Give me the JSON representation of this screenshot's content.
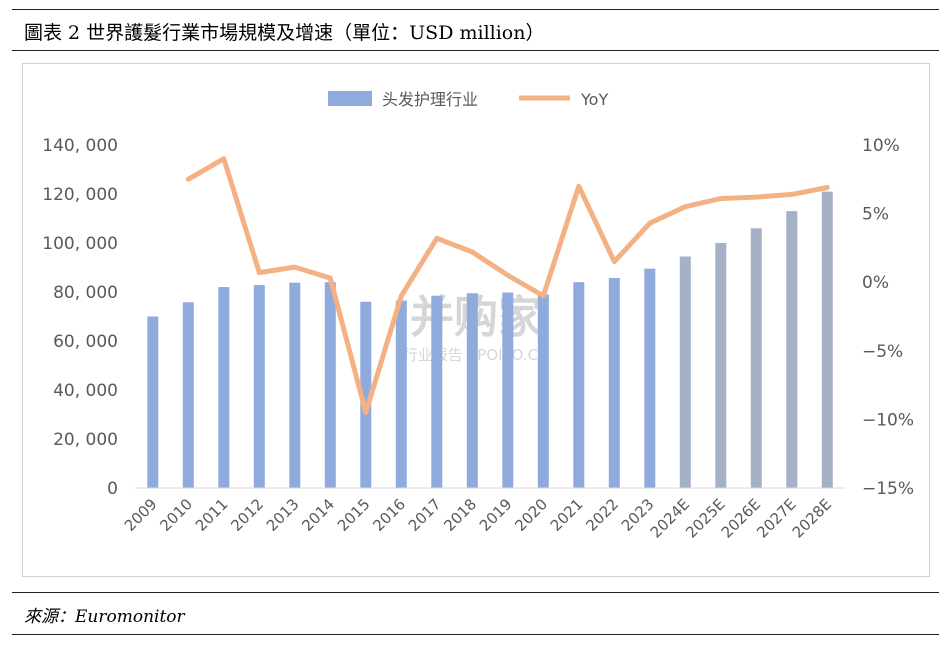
{
  "figure": {
    "title": "圖表 2  世界護髮行業市場規模及增速（單位：USD million）",
    "source": "來源：Euromonitor"
  },
  "watermark": {
    "main": "并购家",
    "sub": "行业报告 | POIPO.CN"
  },
  "chart_data": {
    "type": "bar+line",
    "categories": [
      "2009",
      "2010",
      "2011",
      "2012",
      "2013",
      "2014",
      "2015",
      "2016",
      "2017",
      "2018",
      "2019",
      "2020",
      "2021",
      "2022",
      "2023",
      "2024E",
      "2025E",
      "2026E",
      "2027E",
      "2028E"
    ],
    "series": [
      {
        "name": "头发护理行业",
        "type": "bar",
        "axis": "left",
        "color": "#8faadc",
        "forecast_color": "#a5b1c7",
        "values": [
          70000,
          75800,
          82000,
          82800,
          83800,
          84000,
          76000,
          76500,
          78500,
          79500,
          79800,
          79000,
          84000,
          85700,
          89500,
          94500,
          100000,
          106000,
          113000,
          121000
        ]
      },
      {
        "name": "YoY",
        "type": "line",
        "axis": "right",
        "color": "#f4b183",
        "values": [
          null,
          7.5,
          9.0,
          0.7,
          1.1,
          0.3,
          -9.5,
          -1.0,
          3.2,
          2.2,
          0.5,
          -1.0,
          7.0,
          1.5,
          4.3,
          5.5,
          6.1,
          6.2,
          6.4,
          6.9
        ]
      }
    ],
    "y_left": {
      "min": 0,
      "max": 140000,
      "ticks": [
        0,
        20000,
        40000,
        60000,
        80000,
        100000,
        120000,
        140000
      ],
      "tick_labels": [
        "0",
        "20, 000",
        "40, 000",
        "60, 000",
        "80, 000",
        "100, 000",
        "120, 000",
        "140, 000"
      ]
    },
    "y_right": {
      "min": -15,
      "max": 10,
      "ticks": [
        -15,
        -10,
        -5,
        0,
        5,
        10
      ],
      "tick_labels": [
        "−15%",
        "−10%",
        "−5%",
        "0%",
        "5%",
        "10%"
      ]
    },
    "forecast_from_index": 15,
    "legend": {
      "position": "top"
    },
    "grid": false
  }
}
